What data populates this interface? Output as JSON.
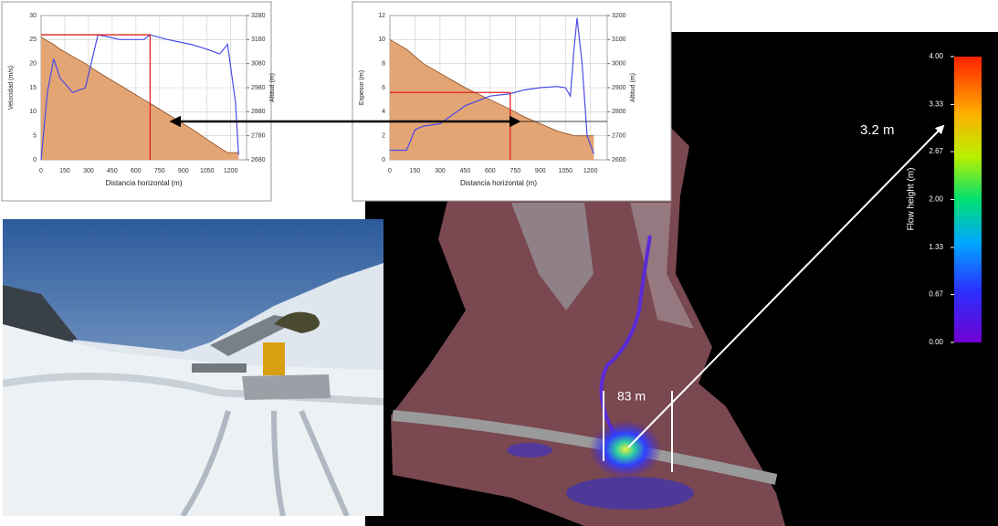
{
  "chart_data": [
    {
      "type": "line",
      "xlabel": "Distancia horizontal (m)",
      "ylabel": "Velocidad (m/s)",
      "y2label": "Altitud (m)",
      "x": [
        0,
        40,
        80,
        120,
        200,
        280,
        360,
        500,
        650,
        690,
        800,
        950,
        1050,
        1130,
        1180,
        1230,
        1250
      ],
      "series": [
        {
          "color": "#e3a574",
          "axis": "y2",
          "fill": true,
          "values": [
            3190,
            3175,
            3160,
            3140,
            3110,
            3080,
            3045,
            2990,
            2930,
            2915,
            2870,
            2810,
            2765,
            2730,
            2710,
            2710,
            2710
          ]
        },
        {
          "color": "#4a4ae8",
          "values": [
            0,
            14,
            21,
            17,
            14,
            15,
            26,
            25,
            25,
            26,
            25,
            24,
            23,
            22,
            24,
            12,
            1
          ]
        }
      ],
      "xlim": [
        0,
        1300
      ],
      "xticks": [
        0,
        150,
        300,
        450,
        600,
        750,
        900,
        1050,
        1200
      ],
      "ylim": [
        0,
        30
      ],
      "yticks": [
        0,
        5,
        10,
        15,
        20,
        25,
        30
      ],
      "y2lim": [
        2680,
        3280
      ],
      "y2ticks": [
        2680,
        2780,
        2880,
        2980,
        3080,
        3180,
        3280
      ],
      "grid": true,
      "marker": {
        "x": 690,
        "y": 26,
        "color": "#e02020"
      }
    },
    {
      "type": "line",
      "xlabel": "Distancia horizontal (m)",
      "ylabel": "Espesor (m)",
      "y2label": "Altitud (m)",
      "x": [
        0,
        100,
        150,
        200,
        300,
        350,
        450,
        600,
        720,
        800,
        900,
        1000,
        1050,
        1080,
        1100,
        1120,
        1150,
        1180,
        1220
      ],
      "series": [
        {
          "color": "#e3a574",
          "axis": "y2",
          "fill": true,
          "values": [
            3100,
            3060,
            3030,
            3000,
            2960,
            2940,
            2900,
            2850,
            2810,
            2780,
            2750,
            2720,
            2710,
            2705,
            2700,
            2700,
            2700,
            2700,
            2700
          ]
        },
        {
          "color": "#4a4ae8",
          "values": [
            0.8,
            0.8,
            2.5,
            2.8,
            3,
            3.5,
            4.5,
            5.3,
            5.5,
            5.8,
            6,
            6.1,
            6,
            5.3,
            9,
            11.8,
            8,
            2,
            0.5
          ]
        }
      ],
      "xlim": [
        0,
        1300
      ],
      "xticks": [
        0,
        150,
        300,
        450,
        600,
        750,
        900,
        1050,
        1200
      ],
      "ylim": [
        0,
        12
      ],
      "yticks": [
        0,
        2,
        4,
        6,
        8,
        10,
        12
      ],
      "y2lim": [
        2600,
        3200
      ],
      "y2ticks": [
        2600,
        2700,
        2800,
        2900,
        3000,
        3100,
        3200
      ],
      "grid": true,
      "marker": {
        "x": 720,
        "y": 5.6,
        "color": "#e02020"
      }
    }
  ],
  "colorbar": {
    "title": "Flow height (m)",
    "lim": [
      0,
      4
    ],
    "ticks": [
      {
        "value": 0,
        "label": "0.00"
      },
      0.67,
      1.33,
      {
        "value": 2,
        "label": "2.00"
      },
      2.67,
      3.33,
      {
        "value": 4,
        "label": "4.00"
      }
    ]
  },
  "map": {
    "annotations": [
      "3.2 m",
      "83 m"
    ]
  }
}
